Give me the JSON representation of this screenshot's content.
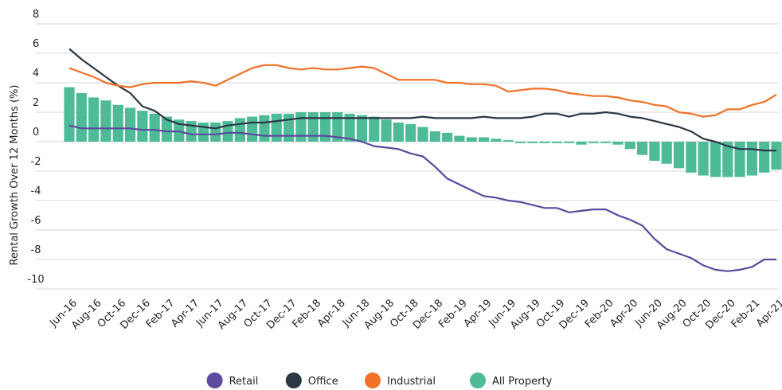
{
  "chart_data": {
    "type": "bar-line",
    "y_axis_label": "Rental Growth Over 12 Months (%)",
    "categories": [
      "Jun-16",
      null,
      "Aug-16",
      null,
      "Oct-16",
      null,
      "Dec-16",
      null,
      "Feb-17",
      null,
      "Apr-17",
      null,
      "Jun-17",
      null,
      "Aug-17",
      null,
      "Oct-17",
      null,
      "Dec-17",
      null,
      "Feb-18",
      null,
      "Apr-18",
      null,
      "Jun-18",
      null,
      "Aug-18",
      null,
      "Oct-18",
      null,
      "Dec-18",
      null,
      "Feb-19",
      null,
      "Apr-19",
      null,
      "Jun-19",
      null,
      "Aug-19",
      null,
      "Oct-19",
      null,
      "Dec-19",
      null,
      "Feb-20",
      null,
      "Apr-20",
      null,
      "Jun-20",
      null,
      "Aug-20",
      null,
      "Oct-20",
      null,
      "Dec-20",
      null,
      "Feb-21",
      null,
      "Apr-21"
    ],
    "series": [
      {
        "name": "Retail",
        "color": "#5b4a9e",
        "kind": "line",
        "values": [
          1.1,
          0.9,
          0.9,
          0.9,
          0.9,
          0.9,
          0.8,
          0.8,
          0.7,
          0.7,
          0.5,
          0.5,
          0.5,
          0.6,
          0.6,
          0.5,
          0.4,
          0.4,
          0.4,
          0.4,
          0.4,
          0.4,
          0.3,
          0.2,
          0.0,
          -0.3,
          -0.4,
          -0.5,
          -0.8,
          -1.0,
          -1.7,
          -2.5,
          -2.9,
          -3.3,
          -3.7,
          -3.8,
          -4.0,
          -4.1,
          -4.3,
          -4.5,
          -4.5,
          -4.8,
          -4.7,
          -4.6,
          -4.6,
          -5.0,
          -5.3,
          -5.7,
          -6.6,
          -7.3,
          -7.6,
          -7.9,
          -8.4,
          -8.7,
          -8.8,
          -8.7,
          -8.5,
          -8.0,
          -8.0
        ]
      },
      {
        "name": "Office",
        "color": "#2b3745",
        "kind": "line",
        "values": [
          6.3,
          5.6,
          5.0,
          4.4,
          3.8,
          3.3,
          2.4,
          2.1,
          1.5,
          1.2,
          1.1,
          1.0,
          0.9,
          1.1,
          1.2,
          1.3,
          1.3,
          1.4,
          1.5,
          1.6,
          1.6,
          1.6,
          1.6,
          1.6,
          1.6,
          1.6,
          1.6,
          1.6,
          1.6,
          1.7,
          1.6,
          1.6,
          1.6,
          1.6,
          1.7,
          1.6,
          1.6,
          1.6,
          1.7,
          1.9,
          1.9,
          1.7,
          1.9,
          1.9,
          2.0,
          1.9,
          1.7,
          1.6,
          1.4,
          1.2,
          1.0,
          0.7,
          0.2,
          0.0,
          -0.3,
          -0.5,
          -0.5,
          -0.6,
          -0.6
        ]
      },
      {
        "name": "Industrial",
        "color": "#f07127",
        "kind": "line",
        "values": [
          5.0,
          4.7,
          4.4,
          4.0,
          3.8,
          3.7,
          3.9,
          4.0,
          4.0,
          4.0,
          4.1,
          4.0,
          3.8,
          4.2,
          4.6,
          5.0,
          5.2,
          5.2,
          5.0,
          4.9,
          5.0,
          4.9,
          4.9,
          5.0,
          5.1,
          5.0,
          4.6,
          4.2,
          4.2,
          4.2,
          4.2,
          4.0,
          4.0,
          3.9,
          3.9,
          3.8,
          3.4,
          3.5,
          3.6,
          3.6,
          3.5,
          3.3,
          3.2,
          3.1,
          3.1,
          3.0,
          2.8,
          2.7,
          2.5,
          2.4,
          2.0,
          1.9,
          1.7,
          1.8,
          2.2,
          2.2,
          2.5,
          2.7,
          3.2
        ]
      },
      {
        "name": "All Property",
        "color": "#4dbb98",
        "kind": "bar",
        "values": [
          3.7,
          3.3,
          3.0,
          2.8,
          2.5,
          2.3,
          2.1,
          1.9,
          1.7,
          1.5,
          1.4,
          1.3,
          1.3,
          1.4,
          1.6,
          1.7,
          1.8,
          1.9,
          1.9,
          2.0,
          2.0,
          2.0,
          2.0,
          1.9,
          1.8,
          1.7,
          1.5,
          1.3,
          1.2,
          1.0,
          0.7,
          0.6,
          0.4,
          0.3,
          0.3,
          0.2,
          0.1,
          -0.1,
          -0.1,
          -0.1,
          -0.1,
          -0.1,
          -0.2,
          -0.1,
          -0.1,
          -0.2,
          -0.5,
          -0.9,
          -1.3,
          -1.5,
          -1.8,
          -2.1,
          -2.3,
          -2.4,
          -2.4,
          -2.4,
          -2.3,
          -2.1,
          -1.9
        ]
      }
    ],
    "ylim": [
      -10,
      8
    ],
    "yticks": [
      -10,
      -8,
      -6,
      -4,
      -2,
      0,
      2,
      4,
      6,
      8
    ],
    "grid": true,
    "legend": "bottom"
  }
}
